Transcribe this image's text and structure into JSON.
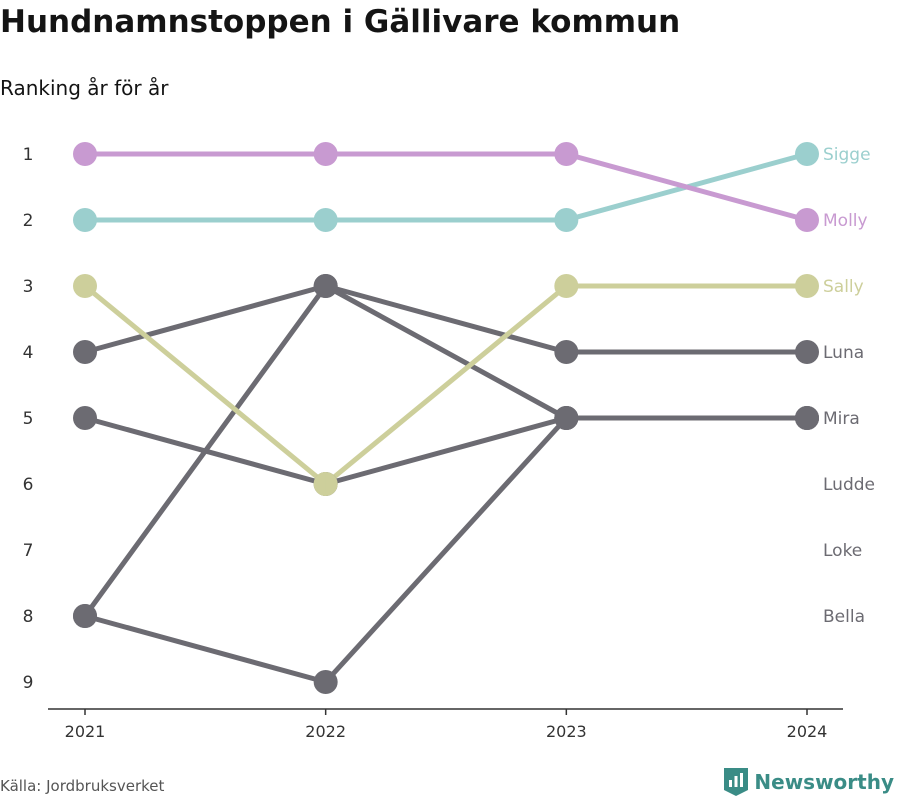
{
  "header": {
    "title": "Hundnamnstoppen i Gällivare kommun",
    "subtitle": "Ranking år för år"
  },
  "footer": {
    "source": "Källa: Jordbruksverket",
    "brand": "Newsworthy"
  },
  "chart_data": {
    "type": "line",
    "subtype": "bump",
    "x": [
      "2021",
      "2022",
      "2023",
      "2024"
    ],
    "y_ticks": [
      1,
      2,
      3,
      4,
      5,
      6,
      7,
      8,
      9
    ],
    "y_inverted": true,
    "grid": false,
    "series": [
      {
        "name": "Sigge",
        "color": "#9bcfce",
        "ranks": [
          2,
          2,
          2,
          1
        ]
      },
      {
        "name": "Molly",
        "color": "#c89ad1",
        "ranks": [
          1,
          1,
          1,
          2
        ]
      },
      {
        "name": "Sally",
        "color": "#cdcf9b",
        "ranks": [
          3,
          6,
          3,
          3
        ]
      },
      {
        "name": "Luna",
        "color": "#6c6b72",
        "ranks": [
          4,
          3,
          4,
          4
        ]
      },
      {
        "name": "Mira",
        "color": "#6c6b72",
        "ranks": [
          5,
          6,
          5,
          5
        ]
      },
      {
        "name": "Ludde",
        "color": "#6c6b72",
        "ranks": [
          8,
          3,
          5,
          5
        ]
      },
      {
        "name": "Loke",
        "color": "#6c6b72",
        "ranks": [
          8,
          9,
          5,
          5
        ]
      },
      {
        "name": "Bella",
        "color": "#6c6b72",
        "ranks": [
          null,
          null,
          null,
          null
        ]
      }
    ],
    "end_labels": [
      {
        "text": "Sigge",
        "rank": 1,
        "color": "#9bcfce"
      },
      {
        "text": "Molly",
        "rank": 2,
        "color": "#c89ad1"
      },
      {
        "text": "Sally",
        "rank": 3,
        "color": "#cdcf9b"
      },
      {
        "text": "Luna",
        "rank": 4,
        "color": "#6c6b72"
      },
      {
        "text": "Mira",
        "rank": 5,
        "color": "#6c6b72"
      },
      {
        "text": "Ludde",
        "rank": 6,
        "color": "#6c6b72"
      },
      {
        "text": "Loke",
        "rank": 7,
        "color": "#6c6b72"
      },
      {
        "text": "Bella",
        "rank": 8,
        "color": "#6c6b72"
      }
    ]
  }
}
